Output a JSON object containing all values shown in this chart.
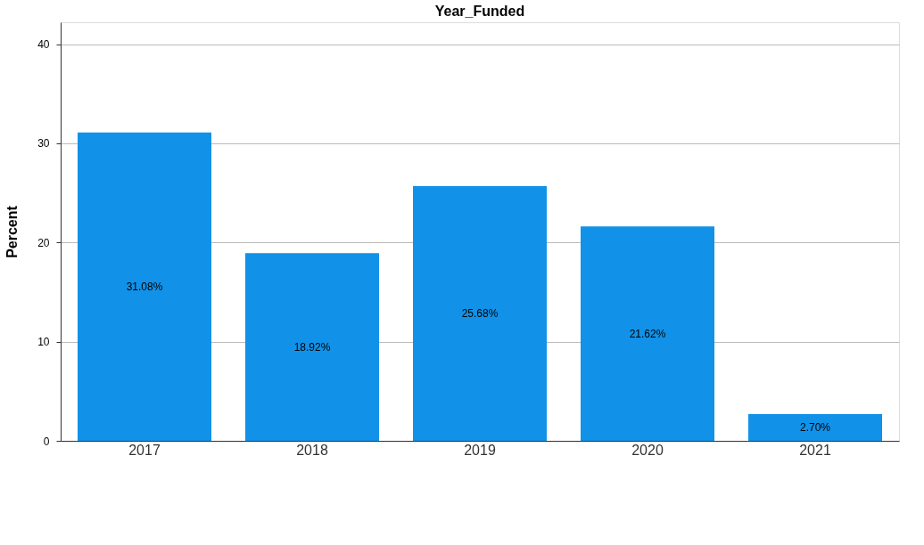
{
  "chart_data": {
    "type": "bar",
    "title": "Year_Funded",
    "ylabel": "Percent",
    "categories": [
      "2017",
      "2018",
      "2019",
      "2020",
      "2021"
    ],
    "values": [
      31.08,
      18.92,
      25.68,
      21.62,
      2.7
    ],
    "value_labels": [
      "31.08%",
      "18.92%",
      "25.68%",
      "21.62%",
      "2.70%"
    ],
    "color": "#1192e8",
    "ylim": [
      0,
      42.2
    ],
    "yticks": [
      0,
      10,
      20,
      30,
      40
    ],
    "grid": "y"
  }
}
